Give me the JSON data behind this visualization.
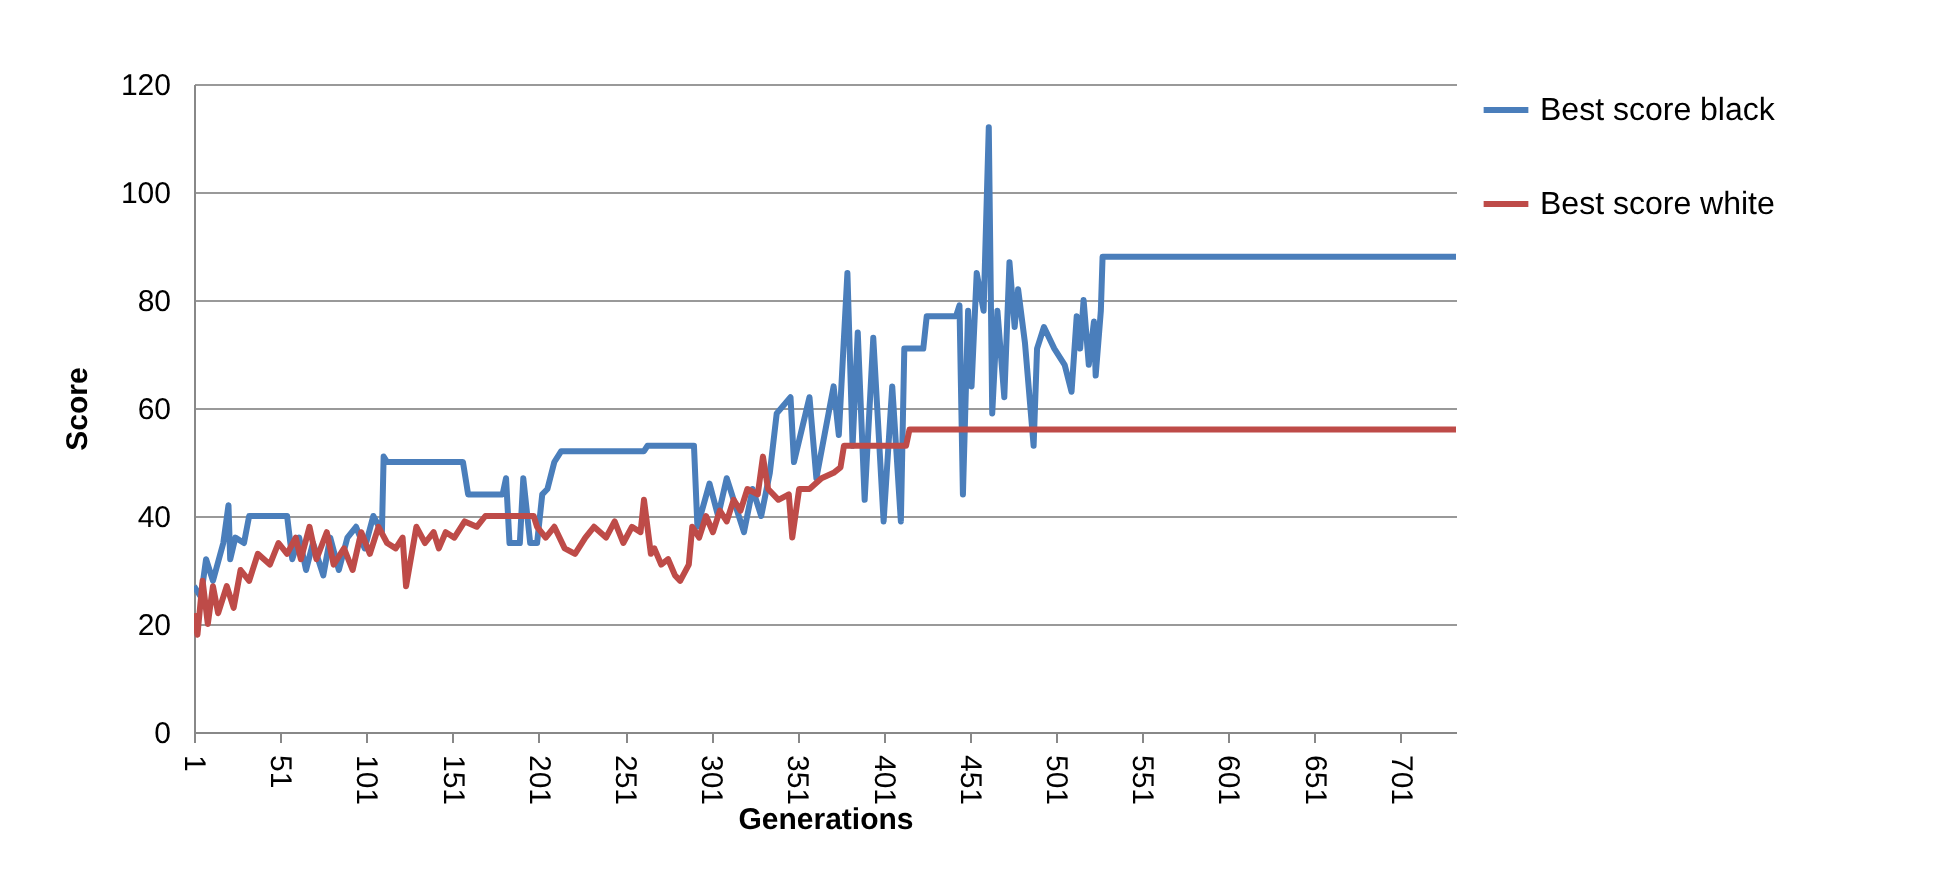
{
  "chart_data": {
    "type": "line",
    "xlabel": "Generations",
    "ylabel": "Score",
    "xlim": [
      1,
      733
    ],
    "xticks": [
      1,
      51,
      101,
      151,
      201,
      251,
      301,
      351,
      401,
      451,
      501,
      551,
      601,
      651,
      701
    ],
    "ylim": [
      0,
      120
    ],
    "yticks": [
      0,
      20,
      40,
      60,
      80,
      100,
      120
    ],
    "grid": "y",
    "legend": "right",
    "line_style": "solid",
    "series": [
      {
        "name": "Best score black",
        "color": "#4a7ebb",
        "x": [
          1,
          5,
          8,
          12,
          18,
          21,
          22,
          25,
          30,
          33,
          55,
          58,
          62,
          66,
          70,
          76,
          80,
          85,
          90,
          95,
          100,
          105,
          110,
          111,
          113,
          157,
          160,
          180,
          182,
          184,
          190,
          192,
          196,
          200,
          203,
          206,
          210,
          214,
          262,
          264,
          291,
          293,
          300,
          305,
          310,
          315,
          320,
          325,
          330,
          335,
          339,
          347,
          349,
          358,
          362,
          372,
          375,
          380,
          383,
          386,
          390,
          395,
          401,
          406,
          411,
          413,
          424,
          426,
          443,
          445,
          447,
          450,
          452,
          455,
          459,
          462,
          464,
          467,
          471,
          474,
          477,
          479,
          483,
          488,
          490,
          494,
          500,
          506,
          510,
          513,
          515,
          517,
          520,
          523,
          524,
          527,
          528,
          733
        ],
        "values": [
          27,
          25,
          32,
          28,
          35,
          42,
          32,
          36,
          35,
          40,
          40,
          32,
          36,
          30,
          35,
          29,
          36,
          30,
          36,
          38,
          34,
          40,
          37,
          51,
          50,
          50,
          44,
          44,
          47,
          35,
          35,
          47,
          35,
          35,
          44,
          45,
          50,
          52,
          52,
          53,
          53,
          38,
          46,
          40,
          47,
          42,
          37,
          45,
          40,
          48,
          59,
          62,
          50,
          62,
          47,
          64,
          55,
          85,
          53,
          74,
          43,
          73,
          39,
          64,
          39,
          71,
          71,
          77,
          77,
          79,
          44,
          78,
          64,
          85,
          78,
          112,
          59,
          78,
          62,
          87,
          75,
          82,
          72,
          53,
          71,
          75,
          71,
          68,
          63,
          77,
          71,
          80,
          68,
          76,
          66,
          78,
          88,
          88
        ]
      },
      {
        "name": "Best score white",
        "color": "#be4b48",
        "x": [
          1,
          3,
          6,
          9,
          12,
          15,
          20,
          24,
          28,
          33,
          38,
          45,
          50,
          55,
          60,
          63,
          68,
          72,
          78,
          82,
          88,
          93,
          98,
          103,
          108,
          113,
          118,
          122,
          124,
          130,
          135,
          140,
          143,
          147,
          152,
          158,
          165,
          170,
          175,
          198,
          200,
          205,
          210,
          216,
          222,
          228,
          233,
          240,
          245,
          250,
          255,
          260,
          262,
          266,
          268,
          272,
          276,
          280,
          283,
          288,
          290,
          294,
          298,
          302,
          306,
          310,
          314,
          318,
          322,
          328,
          331,
          334,
          340,
          346,
          348,
          352,
          358,
          365,
          372,
          376,
          378,
          414,
          416,
          733
        ],
        "values": [
          22,
          18,
          28,
          20,
          27,
          22,
          27,
          23,
          30,
          28,
          33,
          31,
          35,
          33,
          36,
          32,
          38,
          32,
          37,
          31,
          34,
          30,
          37,
          33,
          38,
          35,
          34,
          36,
          27,
          38,
          35,
          37,
          34,
          37,
          36,
          39,
          38,
          40,
          40,
          40,
          38,
          36,
          38,
          34,
          33,
          36,
          38,
          36,
          39,
          35,
          38,
          37,
          43,
          33,
          34,
          31,
          32,
          29,
          28,
          31,
          38,
          36,
          40,
          37,
          41,
          39,
          43,
          41,
          45,
          44,
          51,
          45,
          43,
          44,
          36,
          45,
          45,
          47,
          48,
          49,
          53,
          53,
          56,
          56
        ]
      }
    ]
  }
}
